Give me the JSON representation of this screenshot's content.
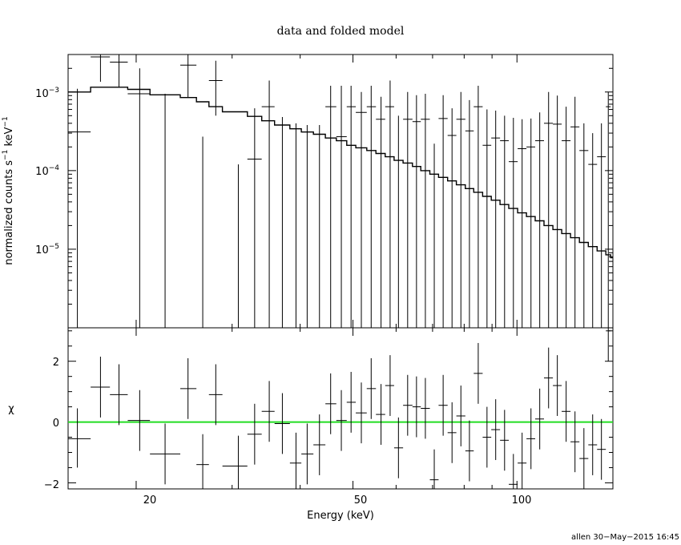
{
  "chart_data": [
    {
      "type": "line",
      "panel": "spectrum",
      "title": "data and folded model",
      "ylabel_main": "normalized counts s",
      "ylabel_sup1": "−1",
      "ylabel_mid": " keV",
      "ylabel_sup2": "−1",
      "xscale": "log",
      "yscale": "log",
      "xlim": [
        15,
        150
      ],
      "ylim": [
        1e-06,
        0.003
      ],
      "y_tick_labels": [
        {
          "mant": "10",
          "exp": "−3",
          "value": 0.001
        },
        {
          "mant": "10",
          "exp": "−4",
          "value": 0.0001
        },
        {
          "mant": "10",
          "exp": "−5",
          "value": 1e-05
        }
      ],
      "color": "#000000",
      "series": [
        {
          "role": "data",
          "points": [
            {
              "x": 15.6,
              "xlo": 15.0,
              "xhi": 16.5,
              "y": 0.00031,
              "ylo": 1e-06,
              "yhi": 0.0011
            },
            {
              "x": 17.2,
              "xlo": 16.5,
              "xhi": 17.9,
              "y": 0.0028,
              "ylo": 0.00135,
              "yhi": 0.003
            },
            {
              "x": 18.6,
              "xlo": 17.9,
              "xhi": 19.3,
              "y": 0.0024,
              "ylo": 0.00115,
              "yhi": 0.003
            },
            {
              "x": 20.3,
              "xlo": 19.3,
              "xhi": 21.2,
              "y": 0.00095,
              "ylo": 1e-06,
              "yhi": 0.002
            },
            {
              "x": 22.6,
              "xlo": 21.2,
              "xhi": 24.1,
              "y": 0.0,
              "ylo": 1e-06,
              "yhi": 0.00095
            },
            {
              "x": 24.9,
              "xlo": 24.1,
              "xhi": 25.8,
              "y": 0.0022,
              "ylo": 0.00085,
              "yhi": 0.003
            },
            {
              "x": 26.5,
              "xlo": 25.8,
              "xhi": 27.2,
              "y": 0.0,
              "ylo": 1e-06,
              "yhi": 0.00027
            },
            {
              "x": 28.0,
              "xlo": 27.2,
              "xhi": 28.8,
              "y": 0.0014,
              "ylo": 0.0005,
              "yhi": 0.0025
            },
            {
              "x": 30.8,
              "xlo": 28.8,
              "xhi": 32.0,
              "y": 0.0,
              "ylo": 1e-06,
              "yhi": 0.00012
            },
            {
              "x": 33.0,
              "xlo": 32.0,
              "xhi": 34.0,
              "y": 0.00014,
              "ylo": 1e-06,
              "yhi": 0.00062
            },
            {
              "x": 35.1,
              "xlo": 34.0,
              "xhi": 35.9,
              "y": 0.00065,
              "ylo": 1e-06,
              "yhi": 0.0014
            },
            {
              "x": 37.1,
              "xlo": 35.9,
              "xhi": 38.3,
              "y": 0.0,
              "ylo": 1e-06,
              "yhi": 0.00048
            },
            {
              "x": 39.3,
              "xlo": 38.3,
              "xhi": 40.2,
              "y": 0.0,
              "ylo": 1e-06,
              "yhi": 0.0004
            },
            {
              "x": 41.2,
              "xlo": 40.2,
              "xhi": 42.3,
              "y": 0.0,
              "ylo": 1e-06,
              "yhi": 0.00038
            },
            {
              "x": 43.4,
              "xlo": 42.3,
              "xhi": 44.5,
              "y": 0.0,
              "ylo": 1e-06,
              "yhi": 0.00038
            },
            {
              "x": 45.5,
              "xlo": 44.5,
              "xhi": 46.6,
              "y": 0.00065,
              "ylo": 1e-06,
              "yhi": 0.0012
            },
            {
              "x": 47.6,
              "xlo": 46.6,
              "xhi": 48.7,
              "y": 0.00027,
              "ylo": 1e-06,
              "yhi": 0.0012
            },
            {
              "x": 49.6,
              "xlo": 48.7,
              "xhi": 50.6,
              "y": 0.00065,
              "ylo": 1e-06,
              "yhi": 0.0012
            },
            {
              "x": 51.8,
              "xlo": 50.6,
              "xhi": 53.0,
              "y": 0.00055,
              "ylo": 1e-06,
              "yhi": 0.001
            },
            {
              "x": 54.0,
              "xlo": 53.0,
              "xhi": 55.1,
              "y": 0.00065,
              "ylo": 1e-06,
              "yhi": 0.0012
            },
            {
              "x": 56.3,
              "xlo": 55.1,
              "xhi": 57.3,
              "y": 0.00045,
              "ylo": 1e-06,
              "yhi": 0.00087
            },
            {
              "x": 58.5,
              "xlo": 57.3,
              "xhi": 59.5,
              "y": 0.00065,
              "ylo": 1e-06,
              "yhi": 0.0014
            },
            {
              "x": 60.6,
              "xlo": 59.5,
              "xhi": 61.8,
              "y": 0.0,
              "ylo": 1e-06,
              "yhi": 0.0005
            },
            {
              "x": 63.0,
              "xlo": 61.8,
              "xhi": 64.3,
              "y": 0.00045,
              "ylo": 1e-06,
              "yhi": 0.001
            },
            {
              "x": 65.4,
              "xlo": 64.3,
              "xhi": 66.6,
              "y": 0.00042,
              "ylo": 1e-06,
              "yhi": 0.00091
            },
            {
              "x": 67.9,
              "xlo": 66.6,
              "xhi": 69.2,
              "y": 0.00045,
              "ylo": 1e-06,
              "yhi": 0.00095
            },
            {
              "x": 70.5,
              "xlo": 69.2,
              "xhi": 71.8,
              "y": 0.0,
              "ylo": 1e-06,
              "yhi": 0.00022
            },
            {
              "x": 73.2,
              "xlo": 71.8,
              "xhi": 74.6,
              "y": 0.00046,
              "ylo": 1e-06,
              "yhi": 0.00091
            },
            {
              "x": 76.0,
              "xlo": 74.6,
              "xhi": 77.4,
              "y": 0.00028,
              "ylo": 1e-06,
              "yhi": 0.00062
            },
            {
              "x": 78.9,
              "xlo": 77.4,
              "xhi": 80.4,
              "y": 0.00045,
              "ylo": 1e-06,
              "yhi": 0.001
            },
            {
              "x": 81.8,
              "xlo": 80.4,
              "xhi": 83.3,
              "y": 0.00032,
              "ylo": 1e-06,
              "yhi": 0.00079
            },
            {
              "x": 84.9,
              "xlo": 83.3,
              "xhi": 86.5,
              "y": 0.00065,
              "ylo": 1e-06,
              "yhi": 0.0012
            },
            {
              "x": 88.1,
              "xlo": 86.5,
              "xhi": 89.7,
              "y": 0.00021,
              "ylo": 1e-06,
              "yhi": 0.0006
            },
            {
              "x": 91.4,
              "xlo": 89.7,
              "xhi": 93.1,
              "y": 0.00026,
              "ylo": 1e-06,
              "yhi": 0.00058
            },
            {
              "x": 94.9,
              "xlo": 93.1,
              "xhi": 96.6,
              "y": 0.00024,
              "ylo": 1e-06,
              "yhi": 0.0005
            },
            {
              "x": 98.5,
              "xlo": 96.6,
              "xhi": 100.3,
              "y": 0.00013,
              "ylo": 1e-06,
              "yhi": 0.00047
            },
            {
              "x": 102.2,
              "xlo": 100.3,
              "xhi": 104.1,
              "y": 0.00019,
              "ylo": 1e-06,
              "yhi": 0.00045
            },
            {
              "x": 106.1,
              "xlo": 104.1,
              "xhi": 108.0,
              "y": 0.0002,
              "ylo": 1e-06,
              "yhi": 0.00046
            },
            {
              "x": 110.1,
              "xlo": 108.0,
              "xhi": 112.1,
              "y": 0.00024,
              "ylo": 1e-06,
              "yhi": 0.00055
            },
            {
              "x": 114.3,
              "xlo": 112.1,
              "xhi": 116.4,
              "y": 0.0004,
              "ylo": 1e-06,
              "yhi": 0.001
            },
            {
              "x": 118.6,
              "xlo": 116.4,
              "xhi": 120.8,
              "y": 0.00039,
              "ylo": 1e-06,
              "yhi": 0.0009
            },
            {
              "x": 123.1,
              "xlo": 120.8,
              "xhi": 125.4,
              "y": 0.00024,
              "ylo": 1e-06,
              "yhi": 0.00065
            },
            {
              "x": 127.8,
              "xlo": 125.4,
              "xhi": 130.2,
              "y": 0.00036,
              "ylo": 1e-06,
              "yhi": 0.00087
            },
            {
              "x": 132.7,
              "xlo": 130.2,
              "xhi": 135.2,
              "y": 0.00018,
              "ylo": 1e-06,
              "yhi": 0.0004
            },
            {
              "x": 137.7,
              "xlo": 135.2,
              "xhi": 140.3,
              "y": 0.00012,
              "ylo": 1e-06,
              "yhi": 0.0003
            },
            {
              "x": 142.9,
              "xlo": 140.3,
              "xhi": 145.6,
              "y": 0.00015,
              "ylo": 1e-06,
              "yhi": 0.0004
            },
            {
              "x": 147.1,
              "xlo": 145.6,
              "xhi": 148.6,
              "y": 0.00065,
              "ylo": 1e-06,
              "yhi": 0.001
            }
          ]
        },
        {
          "role": "folded model",
          "step_edges": [
            15.0,
            16.5,
            17.9,
            19.3,
            21.2,
            24.1,
            25.8,
            27.2,
            28.8,
            32.0,
            34.0,
            35.9,
            38.3,
            40.2,
            42.3,
            44.5,
            46.6,
            48.7,
            50.6,
            53.0,
            55.1,
            57.3,
            59.5,
            61.8,
            64.3,
            66.6,
            69.2,
            71.8,
            74.6,
            77.4,
            80.4,
            83.3,
            86.5,
            89.7,
            93.1,
            96.6,
            100.3,
            104.1,
            108.0,
            112.1,
            116.4,
            120.8,
            125.4,
            130.2,
            135.2,
            140.3,
            145.6,
            148.6,
            150.0
          ],
          "step_values": [
            0.001,
            0.00115,
            0.00115,
            0.00108,
            0.00092,
            0.00085,
            0.00075,
            0.00065,
            0.00056,
            0.00049,
            0.00043,
            0.00038,
            0.00034,
            0.00031,
            0.00029,
            0.00026,
            0.00024,
            0.00021,
            0.000195,
            0.00018,
            0.000165,
            0.00015,
            0.000135,
            0.000125,
            0.000113,
            0.0001,
            9e-05,
            8.2e-05,
            7.4e-05,
            6.6e-05,
            5.9e-05,
            5.3e-05,
            4.7e-05,
            4.2e-05,
            3.7e-05,
            3.3e-05,
            2.9e-05,
            2.6e-05,
            2.3e-05,
            2e-05,
            1.78e-05,
            1.58e-05,
            1.4e-05,
            1.22e-05,
            1.08e-05,
            9.5e-06,
            8.5e-06,
            7.8e-06
          ]
        }
      ]
    },
    {
      "type": "scatter",
      "panel": "residuals",
      "ylabel": "χ",
      "xlabel": "Energy (keV)",
      "xscale": "log",
      "xlim": [
        15,
        150
      ],
      "ylim": [
        -2.2,
        3.1
      ],
      "x_ticks": [
        {
          "label": "20",
          "value": 20
        },
        {
          "label": "50",
          "value": 50
        },
        {
          "label": "100",
          "value": 100
        }
      ],
      "y_ticks": [
        {
          "label": "2",
          "value": 2
        },
        {
          "label": "0",
          "value": 0
        },
        {
          "label": "−2",
          "value": -2
        }
      ],
      "zero_line_color": "#22dd22",
      "points": [
        {
          "x": 15.6,
          "xlo": 15.0,
          "xhi": 16.5,
          "y": -0.55,
          "ylo": -1.5,
          "yhi": 0.45
        },
        {
          "x": 17.2,
          "xlo": 16.5,
          "xhi": 17.9,
          "y": 1.15,
          "ylo": 0.15,
          "yhi": 2.15
        },
        {
          "x": 18.6,
          "xlo": 17.9,
          "xhi": 19.3,
          "y": 0.9,
          "ylo": -0.1,
          "yhi": 1.9
        },
        {
          "x": 20.3,
          "xlo": 19.3,
          "xhi": 21.2,
          "y": 0.05,
          "ylo": -0.95,
          "yhi": 1.05
        },
        {
          "x": 22.6,
          "xlo": 21.2,
          "xhi": 24.1,
          "y": -1.05,
          "ylo": -2.05,
          "yhi": -0.05
        },
        {
          "x": 24.9,
          "xlo": 24.1,
          "xhi": 25.8,
          "y": 1.1,
          "ylo": 0.1,
          "yhi": 2.1
        },
        {
          "x": 26.5,
          "xlo": 25.8,
          "xhi": 27.2,
          "y": -1.4,
          "ylo": -2.2,
          "yhi": -0.4
        },
        {
          "x": 28.0,
          "xlo": 27.2,
          "xhi": 28.8,
          "y": 0.9,
          "ylo": -0.1,
          "yhi": 1.9
        },
        {
          "x": 30.8,
          "xlo": 28.8,
          "xhi": 32.0,
          "y": -1.45,
          "ylo": -2.2,
          "yhi": -0.45
        },
        {
          "x": 33.0,
          "xlo": 32.0,
          "xhi": 34.0,
          "y": -0.4,
          "ylo": -1.4,
          "yhi": 0.6
        },
        {
          "x": 35.1,
          "xlo": 34.0,
          "xhi": 35.9,
          "y": 0.35,
          "ylo": -0.65,
          "yhi": 1.35
        },
        {
          "x": 37.1,
          "xlo": 35.9,
          "xhi": 38.3,
          "y": -0.05,
          "ylo": -1.05,
          "yhi": 0.95
        },
        {
          "x": 39.3,
          "xlo": 38.3,
          "xhi": 40.2,
          "y": -1.35,
          "ylo": -2.2,
          "yhi": -0.35
        },
        {
          "x": 41.2,
          "xlo": 40.2,
          "xhi": 42.3,
          "y": -1.05,
          "ylo": -2.05,
          "yhi": -0.05
        },
        {
          "x": 43.4,
          "xlo": 42.3,
          "xhi": 44.5,
          "y": -0.75,
          "ylo": -1.75,
          "yhi": 0.25
        },
        {
          "x": 45.5,
          "xlo": 44.5,
          "xhi": 46.6,
          "y": 0.6,
          "ylo": -0.4,
          "yhi": 1.6
        },
        {
          "x": 47.6,
          "xlo": 46.6,
          "xhi": 48.7,
          "y": 0.05,
          "ylo": -0.95,
          "yhi": 1.05
        },
        {
          "x": 49.6,
          "xlo": 48.7,
          "xhi": 50.6,
          "y": 0.65,
          "ylo": -0.35,
          "yhi": 1.65
        },
        {
          "x": 51.8,
          "xlo": 50.6,
          "xhi": 53.0,
          "y": 0.3,
          "ylo": -0.7,
          "yhi": 1.3
        },
        {
          "x": 54.0,
          "xlo": 53.0,
          "xhi": 55.1,
          "y": 1.1,
          "ylo": 0.1,
          "yhi": 2.1
        },
        {
          "x": 56.3,
          "xlo": 55.1,
          "xhi": 57.3,
          "y": 0.25,
          "ylo": -0.75,
          "yhi": 1.25
        },
        {
          "x": 58.5,
          "xlo": 57.3,
          "xhi": 59.5,
          "y": 1.2,
          "ylo": 0.2,
          "yhi": 2.2
        },
        {
          "x": 60.6,
          "xlo": 59.5,
          "xhi": 61.8,
          "y": -0.85,
          "ylo": -1.85,
          "yhi": 0.15
        },
        {
          "x": 63.0,
          "xlo": 61.8,
          "xhi": 64.3,
          "y": 0.55,
          "ylo": -0.45,
          "yhi": 1.55
        },
        {
          "x": 65.4,
          "xlo": 64.3,
          "xhi": 66.6,
          "y": 0.5,
          "ylo": -0.5,
          "yhi": 1.5
        },
        {
          "x": 67.9,
          "xlo": 66.6,
          "xhi": 69.2,
          "y": 0.45,
          "ylo": -0.55,
          "yhi": 1.45
        },
        {
          "x": 70.5,
          "xlo": 69.2,
          "xhi": 71.8,
          "y": -1.9,
          "ylo": -2.2,
          "yhi": -0.9
        },
        {
          "x": 73.2,
          "xlo": 71.8,
          "xhi": 74.6,
          "y": 0.55,
          "ylo": -0.45,
          "yhi": 1.55
        },
        {
          "x": 76.0,
          "xlo": 74.6,
          "xhi": 77.4,
          "y": -0.35,
          "ylo": -1.35,
          "yhi": 0.65
        },
        {
          "x": 78.9,
          "xlo": 77.4,
          "xhi": 80.4,
          "y": 0.2,
          "ylo": -0.8,
          "yhi": 1.2
        },
        {
          "x": 81.8,
          "xlo": 80.4,
          "xhi": 83.3,
          "y": -0.95,
          "ylo": -1.95,
          "yhi": 0.05
        },
        {
          "x": 84.9,
          "xlo": 83.3,
          "xhi": 86.5,
          "y": 1.6,
          "ylo": 0.6,
          "yhi": 2.6
        },
        {
          "x": 88.1,
          "xlo": 86.5,
          "xhi": 89.7,
          "y": -0.5,
          "ylo": -1.5,
          "yhi": 0.5
        },
        {
          "x": 91.4,
          "xlo": 89.7,
          "xhi": 93.1,
          "y": -0.25,
          "ylo": -1.25,
          "yhi": 0.75
        },
        {
          "x": 94.9,
          "xlo": 93.1,
          "xhi": 96.6,
          "y": -0.6,
          "ylo": -1.6,
          "yhi": 0.4
        },
        {
          "x": 98.5,
          "xlo": 96.6,
          "xhi": 100.3,
          "y": -2.05,
          "ylo": -2.2,
          "yhi": -1.05
        },
        {
          "x": 102.2,
          "xlo": 100.3,
          "xhi": 104.1,
          "y": -1.35,
          "ylo": -2.2,
          "yhi": -0.35
        },
        {
          "x": 106.1,
          "xlo": 104.1,
          "xhi": 108.0,
          "y": -0.55,
          "ylo": -1.55,
          "yhi": 0.45
        },
        {
          "x": 110.1,
          "xlo": 108.0,
          "xhi": 112.1,
          "y": 0.1,
          "ylo": -0.9,
          "yhi": 1.1
        },
        {
          "x": 114.3,
          "xlo": 112.1,
          "xhi": 116.4,
          "y": 1.45,
          "ylo": 0.45,
          "yhi": 2.45
        },
        {
          "x": 118.6,
          "xlo": 116.4,
          "xhi": 120.8,
          "y": 1.2,
          "ylo": 0.2,
          "yhi": 2.2
        },
        {
          "x": 123.1,
          "xlo": 120.8,
          "xhi": 125.4,
          "y": 0.35,
          "ylo": -0.65,
          "yhi": 1.35
        },
        {
          "x": 127.8,
          "xlo": 125.4,
          "xhi": 130.2,
          "y": -0.65,
          "ylo": -1.65,
          "yhi": 0.35
        },
        {
          "x": 132.7,
          "xlo": 130.2,
          "xhi": 135.2,
          "y": -1.2,
          "ylo": -2.2,
          "yhi": -0.2
        },
        {
          "x": 137.7,
          "xlo": 135.2,
          "xhi": 140.3,
          "y": -0.75,
          "ylo": -1.75,
          "yhi": 0.25
        },
        {
          "x": 142.9,
          "xlo": 140.3,
          "xhi": 145.6,
          "y": -0.9,
          "ylo": -1.9,
          "yhi": 0.1
        },
        {
          "x": 147.1,
          "xlo": 145.6,
          "xhi": 148.6,
          "y": 3.0,
          "ylo": 2.0,
          "yhi": 3.1
        }
      ]
    }
  ],
  "footer": "allen 30−May−2015 16:45"
}
